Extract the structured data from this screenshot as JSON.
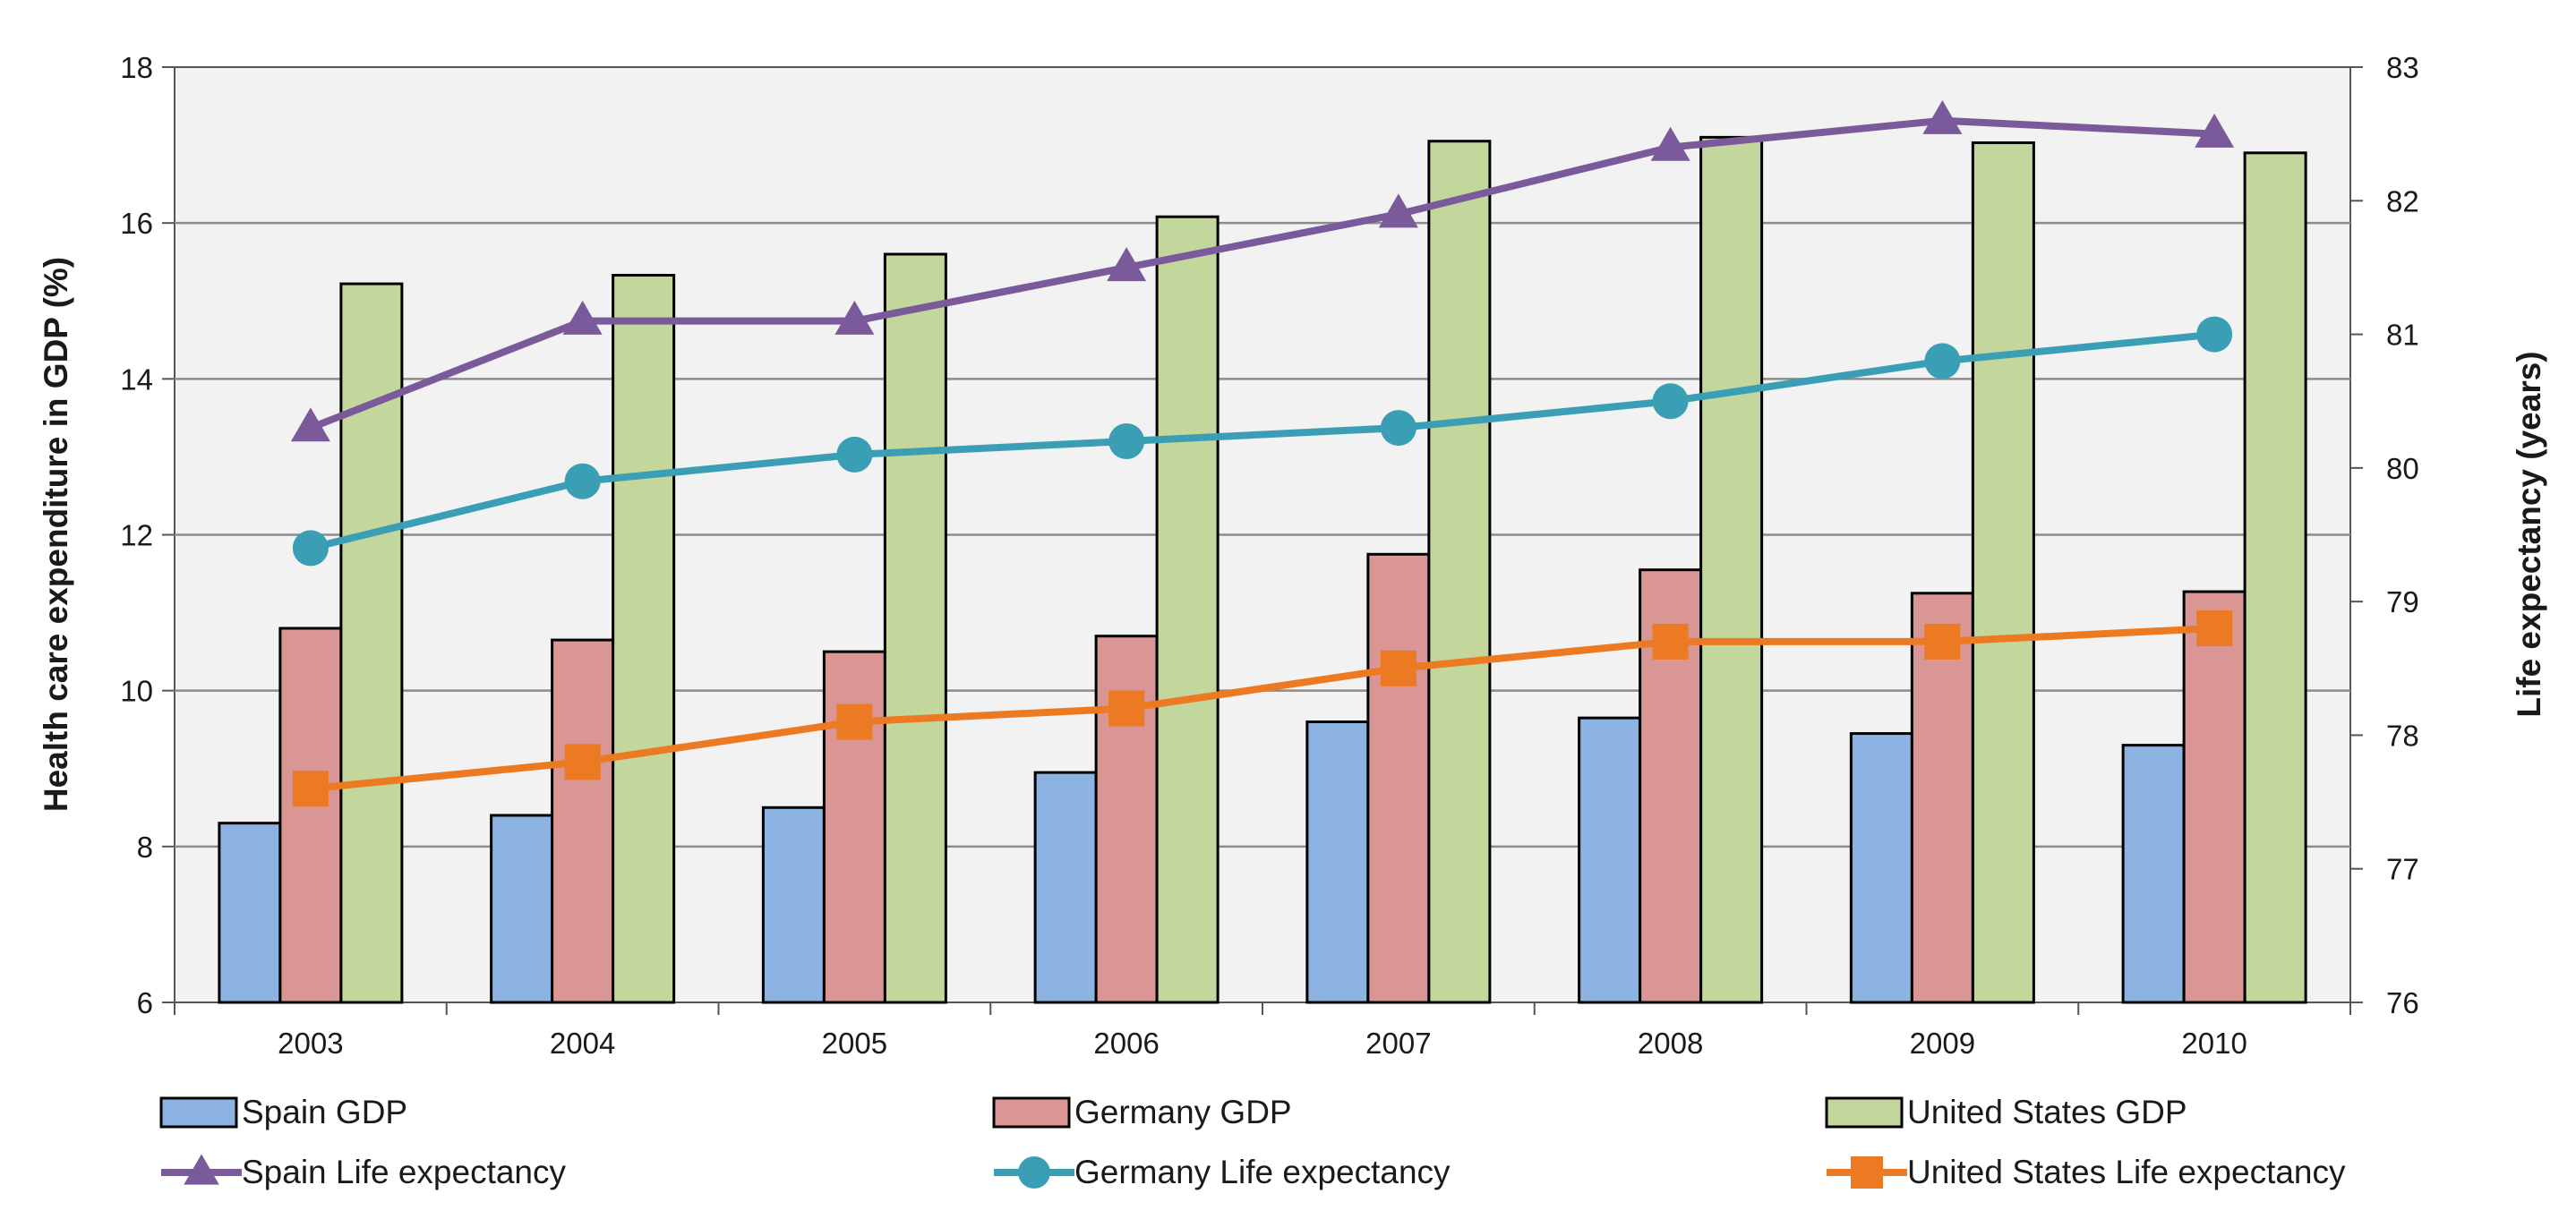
{
  "chart_data": {
    "type": "bar",
    "categories": [
      "2003",
      "2004",
      "2005",
      "2006",
      "2007",
      "2008",
      "2009",
      "2010"
    ],
    "ylabel": "Health care expenditure in GDP (%)",
    "y2label": "Life expectancy (years)",
    "ylim": [
      6,
      18
    ],
    "y2lim": [
      76,
      83
    ],
    "yticks": [
      "6",
      "8",
      "10",
      "12",
      "14",
      "16",
      "18"
    ],
    "y2ticks": [
      "76",
      "77",
      "78",
      "79",
      "80",
      "81",
      "82",
      "83"
    ],
    "grid": true,
    "legend_position": "bottom",
    "series": [
      {
        "name": "Spain GDP",
        "kind": "bar",
        "axis": "left",
        "color": "#8db3e2",
        "values": [
          8.3,
          8.4,
          8.5,
          8.95,
          9.6,
          9.65,
          9.45,
          9.3
        ]
      },
      {
        "name": "Germany GDP",
        "kind": "bar",
        "axis": "left",
        "color": "#d99694",
        "values": [
          10.8,
          10.65,
          10.5,
          10.7,
          11.75,
          11.55,
          11.25,
          11.27
        ]
      },
      {
        "name": "United States GDP",
        "kind": "bar",
        "axis": "left",
        "color": "#c3d69b",
        "values": [
          15.22,
          15.33,
          15.6,
          16.08,
          17.05,
          17.1,
          17.03,
          16.9
        ]
      },
      {
        "name": "Spain Life expectancy",
        "kind": "line",
        "axis": "right",
        "marker": "triangle",
        "color": "#7a5a9a",
        "values": [
          80.3,
          81.1,
          81.1,
          81.5,
          81.9,
          82.4,
          82.6,
          82.5
        ]
      },
      {
        "name": "Germany Life expectancy",
        "kind": "line",
        "axis": "right",
        "marker": "circle",
        "color": "#3a9fb4",
        "values": [
          79.4,
          79.9,
          80.1,
          80.2,
          80.3,
          80.5,
          80.8,
          81.0
        ]
      },
      {
        "name": "United States Life expectancy",
        "kind": "line",
        "axis": "right",
        "marker": "square",
        "color": "#ec7a22",
        "values": [
          77.6,
          77.8,
          78.1,
          78.2,
          78.5,
          78.7,
          78.7,
          78.8
        ]
      }
    ]
  }
}
